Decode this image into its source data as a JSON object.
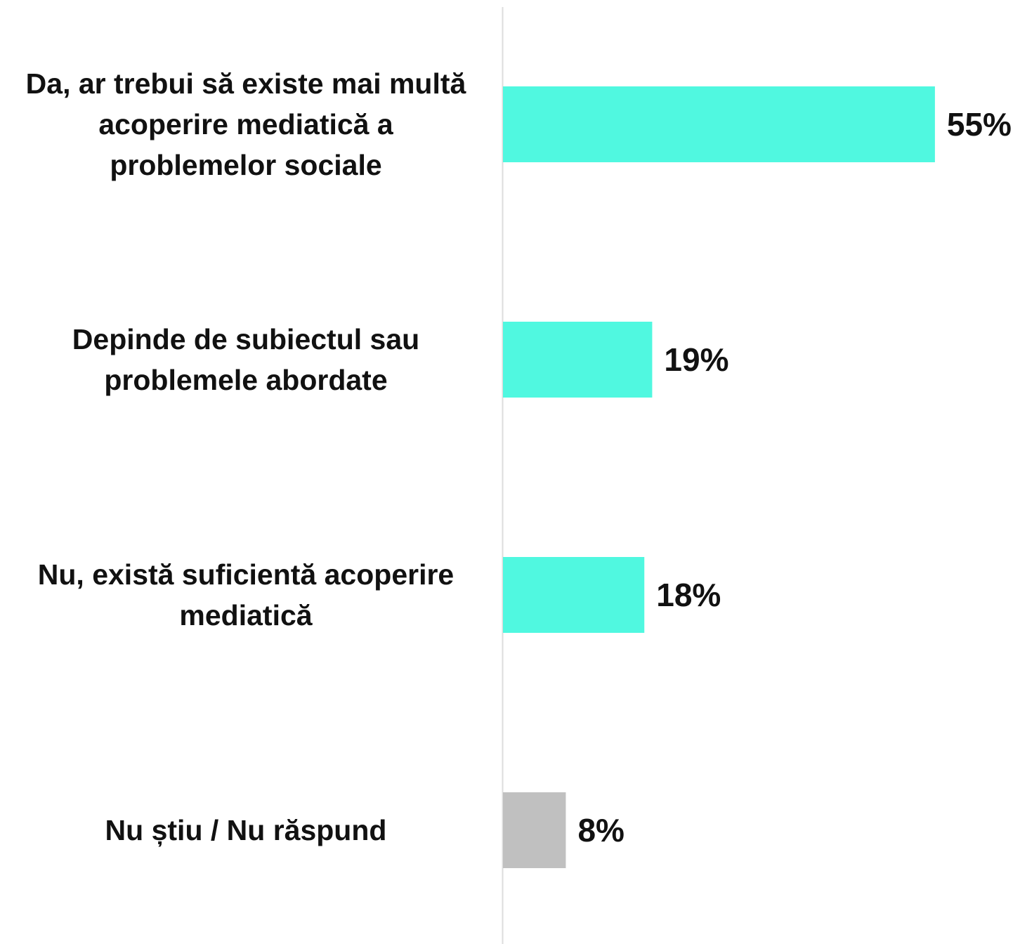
{
  "chart_data": {
    "type": "bar",
    "orientation": "horizontal",
    "categories": [
      "Da, ar trebui să existe mai multă acoperire mediatică a problemelor sociale",
      "Depinde de subiectul sau problemele abordate",
      "Nu, există suficientă acoperire mediatică",
      "Nu știu / Nu răspund"
    ],
    "values": [
      55,
      19,
      18,
      8
    ],
    "value_labels": [
      "55%",
      "19%",
      "18%",
      "8%"
    ],
    "colors": [
      "#50f8e0",
      "#50f8e0",
      "#50f8e0",
      "#c0c0c0"
    ]
  }
}
